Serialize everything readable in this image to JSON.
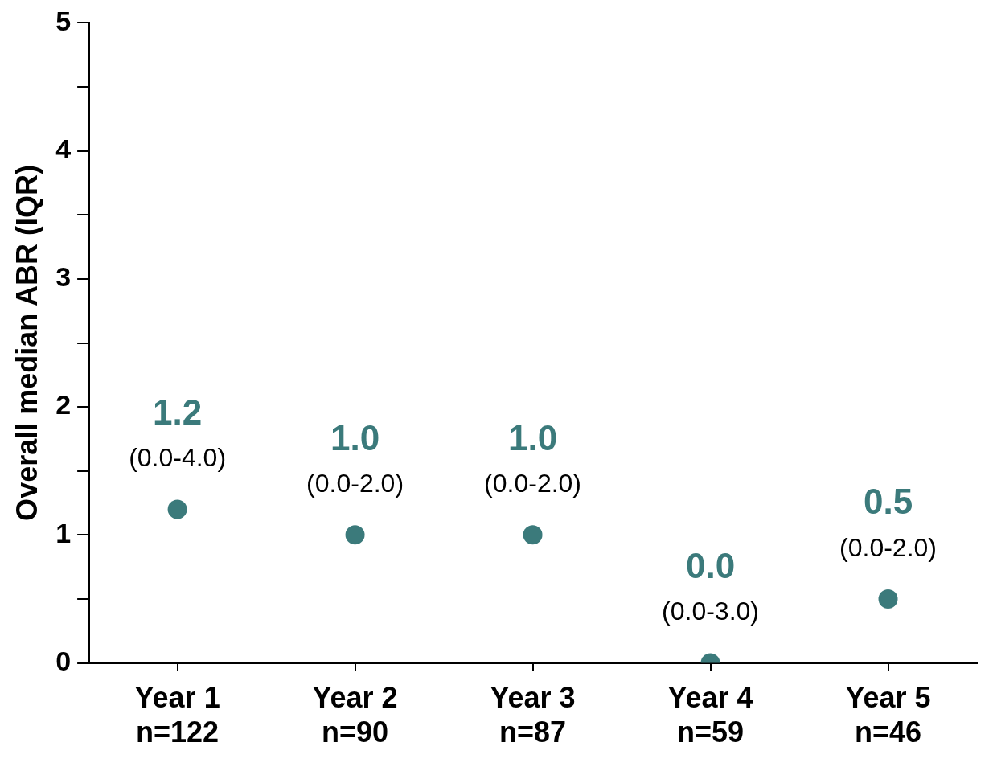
{
  "chart_data": {
    "type": "scatter",
    "ylabel": "Overall median ABR (IQR)",
    "categories": [
      "Year 1\nn=122",
      "Year 2\nn=90",
      "Year 3\nn=87",
      "Year 4\nn=59",
      "Year 5\nn=46"
    ],
    "values": [
      1.2,
      1.0,
      1.0,
      0.0,
      0.5
    ],
    "value_labels": [
      "1.2",
      "1.0",
      "1.0",
      "0.0",
      "0.5"
    ],
    "color": "#3b7a7b",
    "marker": "circle",
    "ylim": [
      0,
      5
    ],
    "yticks": [
      0,
      {
        "value": 0.5,
        "label": null
      },
      1,
      {
        "value": 1.5,
        "label": null
      },
      2,
      {
        "value": 2.5,
        "label": null
      },
      3,
      {
        "value": 3.5,
        "label": null
      },
      4,
      {
        "value": 4.5,
        "label": null
      },
      5
    ],
    "annotations": [
      {
        "text": "(0.0-4.0)",
        "x": "Year 1\nn=122",
        "y": 1.2
      },
      {
        "text": "(0.0-2.0)",
        "x": "Year 2\nn=90",
        "y": 1.0
      },
      {
        "text": "(0.0-2.0)",
        "x": "Year 3\nn=87",
        "y": 1.0
      },
      {
        "text": "(0.0-3.0)",
        "x": "Year 4\nn=59",
        "y": 0.0
      },
      {
        "text": "(0.0-2.0)",
        "x": "Year 5\nn=46",
        "y": 0.5
      }
    ],
    "grid": false,
    "legend": false
  }
}
